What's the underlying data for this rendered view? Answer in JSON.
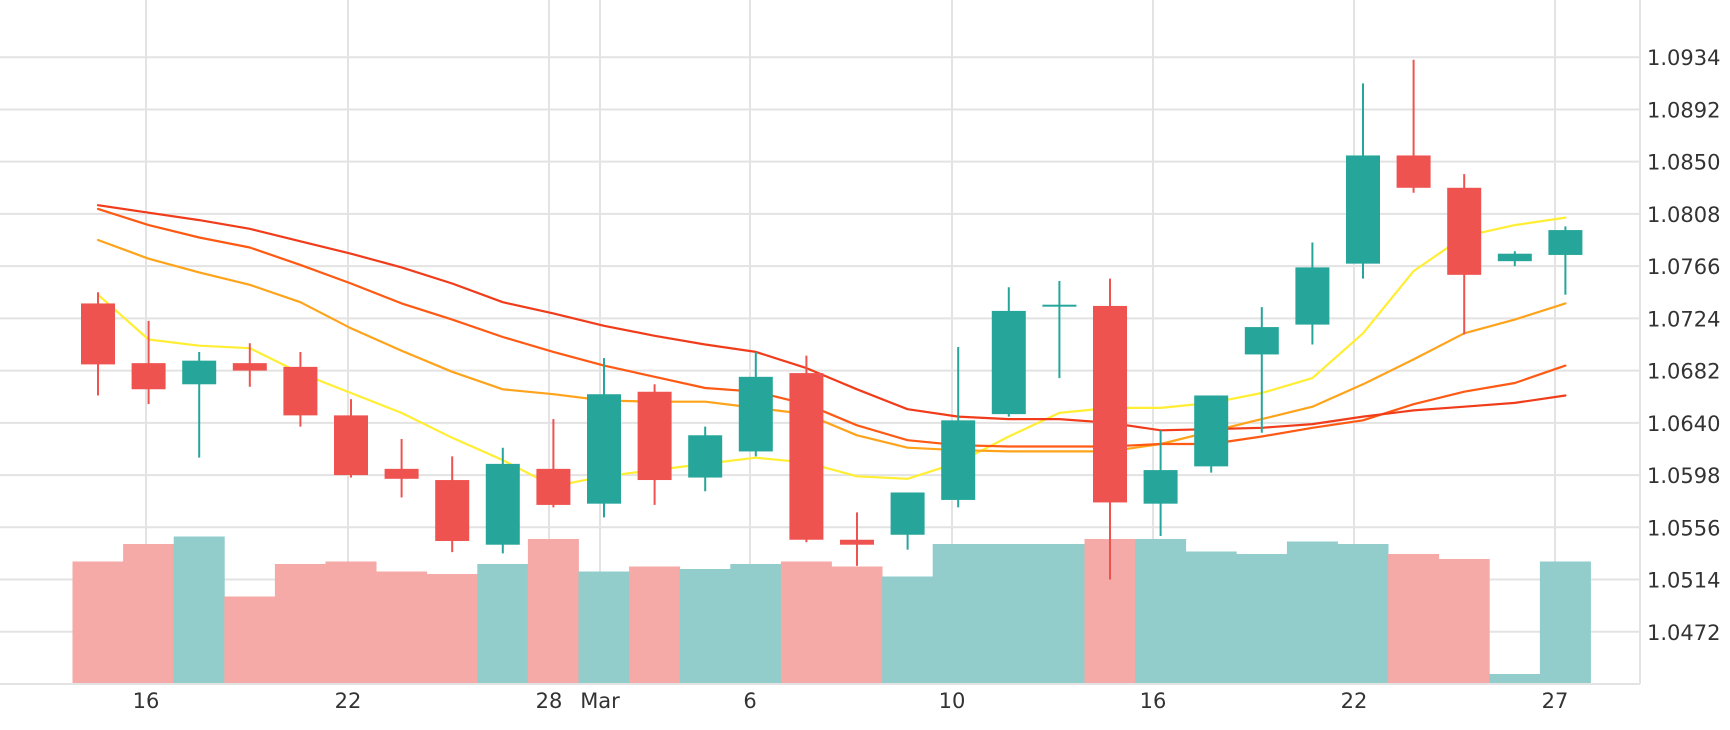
{
  "chart_data": {
    "type": "candlestick",
    "x_tick_labels": [
      "16",
      "22",
      "28",
      "Mar",
      "6",
      "10",
      "16",
      "22",
      "27"
    ],
    "y_tick_labels": [
      "1.0472",
      "1.0514",
      "1.0556",
      "1.0598",
      "1.0640",
      "1.0682",
      "1.0724",
      "1.0766",
      "1.0808",
      "1.0850",
      "1.0892",
      "1.0934"
    ],
    "y_range": [
      1.043,
      1.098
    ],
    "grid": true,
    "legend": "none",
    "colors": {
      "up": "#26a69a",
      "down": "#ef5350",
      "volume_up": "#92cdcb",
      "volume_down": "#f5aaa7",
      "ma_lines": [
        "#ffee33",
        "#ffc21a",
        "#ffa31a",
        "#ff8800",
        "#ff5a14",
        "#f03c1a"
      ]
    },
    "candles": [
      {
        "open": 1.0736,
        "high": 1.0745,
        "low": 1.0662,
        "close": 1.0687,
        "volume": 49
      },
      {
        "open": 1.0688,
        "high": 1.0722,
        "low": 1.0655,
        "close": 1.0667,
        "volume": 56
      },
      {
        "open": 1.0671,
        "high": 1.0697,
        "low": 1.0612,
        "close": 1.069,
        "volume": 59
      },
      {
        "open": 1.0688,
        "high": 1.0704,
        "low": 1.0669,
        "close": 1.0682,
        "volume": 35
      },
      {
        "open": 1.0685,
        "high": 1.0697,
        "low": 1.0637,
        "close": 1.0646,
        "volume": 48
      },
      {
        "open": 1.0646,
        "high": 1.0659,
        "low": 1.0596,
        "close": 1.0598,
        "volume": 49
      },
      {
        "open": 1.0603,
        "high": 1.0627,
        "low": 1.058,
        "close": 1.0595,
        "volume": 45
      },
      {
        "open": 1.0594,
        "high": 1.0613,
        "low": 1.0536,
        "close": 1.0545,
        "volume": 44
      },
      {
        "open": 1.0542,
        "high": 1.062,
        "low": 1.0535,
        "close": 1.0607,
        "volume": 48
      },
      {
        "open": 1.0603,
        "high": 1.0643,
        "low": 1.0572,
        "close": 1.0574,
        "volume": 58
      },
      {
        "open": 1.0575,
        "high": 1.0692,
        "low": 1.0564,
        "close": 1.0663,
        "volume": 45
      },
      {
        "open": 1.0665,
        "high": 1.0671,
        "low": 1.0574,
        "close": 1.0594,
        "volume": 47
      },
      {
        "open": 1.0596,
        "high": 1.0637,
        "low": 1.0585,
        "close": 1.063,
        "volume": 46
      },
      {
        "open": 1.0617,
        "high": 1.0697,
        "low": 1.0613,
        "close": 1.0677,
        "volume": 48
      },
      {
        "open": 1.068,
        "high": 1.0694,
        "low": 1.0544,
        "close": 1.0546,
        "volume": 49
      },
      {
        "open": 1.0546,
        "high": 1.0568,
        "low": 1.0525,
        "close": 1.0542,
        "volume": 47
      },
      {
        "open": 1.055,
        "high": 1.0584,
        "low": 1.0538,
        "close": 1.0584,
        "volume": 43
      },
      {
        "open": 1.0578,
        "high": 1.0701,
        "low": 1.0572,
        "close": 1.0642,
        "volume": 56
      },
      {
        "open": 1.0647,
        "high": 1.0749,
        "low": 1.0645,
        "close": 1.073,
        "volume": 56
      },
      {
        "open": 1.0735,
        "high": 1.0754,
        "low": 1.0676,
        "close": 1.0735,
        "volume": 56
      },
      {
        "open": 1.0734,
        "high": 1.0756,
        "low": 1.0514,
        "close": 1.0576,
        "volume": 58
      },
      {
        "open": 1.0575,
        "high": 1.0634,
        "low": 1.0549,
        "close": 1.0602,
        "volume": 58
      },
      {
        "open": 1.0605,
        "high": 1.0661,
        "low": 1.06,
        "close": 1.0662,
        "volume": 53
      },
      {
        "open": 1.0695,
        "high": 1.0733,
        "low": 1.0632,
        "close": 1.0717,
        "volume": 52
      },
      {
        "open": 1.0719,
        "high": 1.0785,
        "low": 1.0703,
        "close": 1.0765,
        "volume": 57
      },
      {
        "open": 1.0768,
        "high": 1.0913,
        "low": 1.0756,
        "close": 1.0855,
        "volume": 56
      },
      {
        "open": 1.0855,
        "high": 1.0932,
        "low": 1.0825,
        "close": 1.0829,
        "volume": 52
      },
      {
        "open": 1.0829,
        "high": 1.084,
        "low": 1.0711,
        "close": 1.0759,
        "volume": 50
      },
      {
        "open": 1.077,
        "high": 1.0778,
        "low": 1.0766,
        "close": 1.0776,
        "volume": 4
      },
      {
        "open": 1.0775,
        "high": 1.0798,
        "low": 1.0743,
        "close": 1.0795,
        "volume": 49
      }
    ],
    "moving_averages": [
      {
        "values": [
          1.0743,
          1.0707,
          1.0702,
          1.07,
          1.068,
          1.0664,
          1.0648,
          1.0628,
          1.061,
          1.0589,
          1.0597,
          1.0602,
          1.0607,
          1.0612,
          1.0608,
          1.0597,
          1.0595,
          1.0608,
          1.0629,
          1.0648,
          1.0652,
          1.0652,
          1.0656,
          1.0664,
          1.0676,
          1.0712,
          1.0762,
          1.079,
          1.0799,
          1.0805
        ]
      },
      {
        "values": null
      },
      {
        "values": [
          1.0787,
          1.0772,
          1.0761,
          1.0751,
          1.0737,
          1.0716,
          1.0698,
          1.0681,
          1.0667,
          1.0663,
          1.0658,
          1.0657,
          1.0657,
          1.0652,
          1.0647,
          1.063,
          1.062,
          1.0618,
          1.0617,
          1.0617,
          1.0617,
          1.0623,
          1.0633,
          1.0643,
          1.0653,
          1.0671,
          1.0691,
          1.0712,
          1.0723,
          1.0736
        ]
      },
      {
        "values": null
      },
      {
        "values": [
          1.0812,
          1.0799,
          1.0789,
          1.0781,
          1.0767,
          1.0752,
          1.0736,
          1.0723,
          1.0709,
          1.0697,
          1.0686,
          1.0677,
          1.0668,
          1.0665,
          1.0655,
          1.0638,
          1.0626,
          1.0622,
          1.0621,
          1.0621,
          1.0621,
          1.0623,
          1.0623,
          1.0629,
          1.0636,
          1.0642,
          1.0655,
          1.0665,
          1.0672,
          1.0686
        ]
      },
      {
        "values": [
          1.0815,
          1.0809,
          1.0803,
          1.0796,
          1.0786,
          1.0776,
          1.0765,
          1.0752,
          1.0737,
          1.0728,
          1.0718,
          1.071,
          1.0703,
          1.0697,
          1.0684,
          1.0667,
          1.0651,
          1.0645,
          1.0643,
          1.0643,
          1.064,
          1.0634,
          1.0635,
          1.0636,
          1.0639,
          1.0645,
          1.065,
          1.0653,
          1.0656,
          1.0662
        ]
      }
    ]
  }
}
